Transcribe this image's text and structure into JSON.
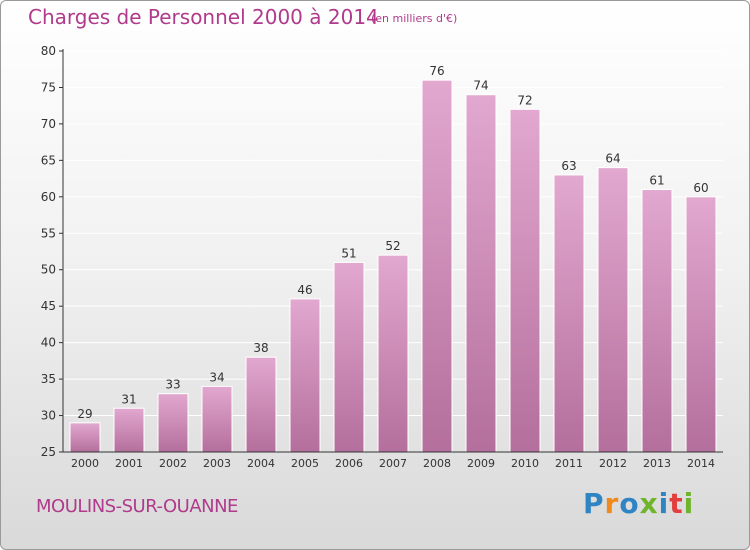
{
  "chart_data": {
    "type": "bar",
    "title": "Charges de Personnel 2000 à 2014",
    "subtitle": "(en milliers d'€)",
    "categories": [
      "2000",
      "2001",
      "2002",
      "2003",
      "2004",
      "2005",
      "2006",
      "2007",
      "2008",
      "2009",
      "2010",
      "2011",
      "2012",
      "2013",
      "2014"
    ],
    "values": [
      29,
      31,
      33,
      34,
      38,
      46,
      51,
      52,
      76,
      74,
      72,
      63,
      64,
      61,
      60
    ],
    "ylim": [
      25,
      80
    ],
    "yticks": [
      25,
      30,
      35,
      40,
      45,
      50,
      55,
      60,
      65,
      70,
      75,
      80
    ],
    "grid": true,
    "legend": "none",
    "bar_color_top": "#e2a8cf",
    "bar_color_bottom": "#b46f9c"
  },
  "commune": "MOULINS-SUR-OUANNE",
  "logo": {
    "letters": [
      "P",
      "r",
      "o",
      "x",
      "i",
      "t",
      "i"
    ],
    "colors": [
      "#2f84c4",
      "#f08a1d",
      "#2f84c4",
      "#6fb52c",
      "#2f84c4",
      "#e23e3e",
      "#6fb52c"
    ]
  },
  "colors": {
    "accent": "#b03a8c",
    "axis": "#333333",
    "grid": "#ffffff"
  }
}
